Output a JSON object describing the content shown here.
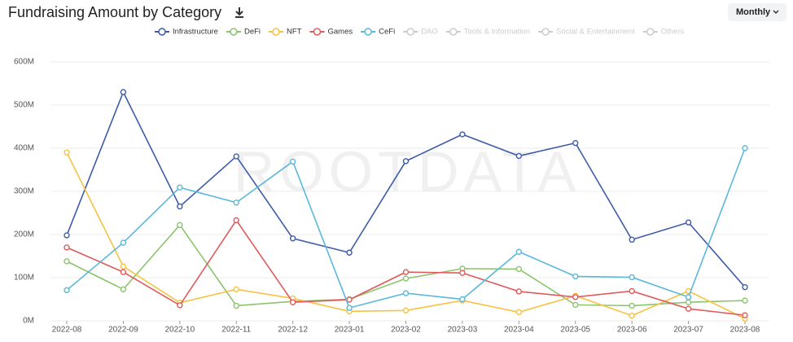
{
  "chart_data": {
    "type": "line",
    "title": "Fundraising Amount by Category",
    "period": "Monthly",
    "watermark": "ROOTDATA",
    "categories": [
      "2022-08",
      "2022-09",
      "2022-10",
      "2022-11",
      "2022-12",
      "2023-01",
      "2023-02",
      "2023-03",
      "2023-04",
      "2023-05",
      "2023-06",
      "2023-07",
      "2023-08"
    ],
    "series": [
      {
        "name": "Infrastructure",
        "color": "#3d5ba9",
        "values": [
          198,
          530,
          265,
          381,
          191,
          158,
          370,
          432,
          382,
          412,
          188,
          228,
          78
        ]
      },
      {
        "name": "DeFi",
        "color": "#8cc46e",
        "values": [
          138,
          73,
          222,
          35,
          45,
          50,
          98,
          121,
          120,
          37,
          35,
          43,
          47
        ]
      },
      {
        "name": "NFT",
        "color": "#f5c242",
        "values": [
          390,
          126,
          42,
          73,
          52,
          22,
          24,
          47,
          20,
          58,
          12,
          69,
          5
        ]
      },
      {
        "name": "Games",
        "color": "#e05a5a",
        "values": [
          170,
          113,
          36,
          233,
          43,
          49,
          113,
          111,
          68,
          55,
          69,
          28,
          13
        ]
      },
      {
        "name": "CeFi",
        "color": "#5bb8d9",
        "values": [
          71,
          181,
          309,
          274,
          369,
          30,
          64,
          50,
          160,
          103,
          101,
          55,
          400
        ]
      }
    ],
    "inactive_legend": [
      "DAO",
      "Tools & Information",
      "Social & Entertainment",
      "Others"
    ],
    "inactive_color": "#cccccc",
    "ylim": [
      0,
      600
    ],
    "yticks": [
      {
        "value": 0,
        "label": "0M"
      },
      {
        "value": 100,
        "label": "100M"
      },
      {
        "value": 200,
        "label": "200M"
      },
      {
        "value": 300,
        "label": "300M"
      },
      {
        "value": 400,
        "label": "400M"
      },
      {
        "value": 500,
        "label": "500M"
      },
      {
        "value": 600,
        "label": "600M"
      }
    ],
    "grid": true
  }
}
